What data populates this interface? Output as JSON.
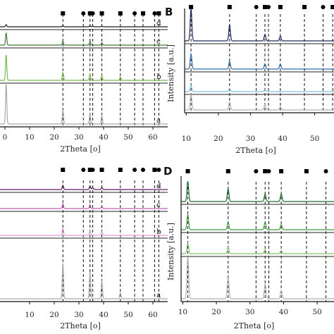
{
  "figure": {
    "colors": {
      "axis": "#111111",
      "separator": "#222222"
    }
  },
  "chart_data": [
    {
      "panel": "",
      "type": "line",
      "xlabel": "2Theta [o]",
      "ylabel": "",
      "xlim": [
        -2,
        66
      ],
      "xticks": [
        "0",
        "10",
        "20",
        "30",
        "40",
        "50",
        "60"
      ],
      "xtick_values": [
        0,
        10,
        20,
        30,
        40,
        50,
        60
      ],
      "marker_lines": [
        {
          "x": 23.5,
          "marker": "square"
        },
        {
          "x": 31.8,
          "marker": "circle"
        },
        {
          "x": 34.5,
          "marker": "square"
        },
        {
          "x": 35.6,
          "marker": "circle"
        },
        {
          "x": 39.3,
          "marker": "square"
        },
        {
          "x": 46.8,
          "marker": "square"
        },
        {
          "x": 52.6,
          "marker": "circle"
        },
        {
          "x": 56.0,
          "marker": "square"
        },
        {
          "x": 60.7,
          "marker": "circle"
        },
        {
          "x": 62.4,
          "marker": "square"
        }
      ],
      "series": [
        {
          "name": "d",
          "color": "#1c1c1c",
          "peaks": [
            [
              0.5,
              0.5
            ],
            [
              23.5,
              0.25
            ],
            [
              34.5,
              0.25
            ],
            [
              35.6,
              0.15
            ],
            [
              39.3,
              0.15
            ]
          ]
        },
        {
          "name": "c",
          "color": "#3d7a34",
          "peaks": [
            [
              0.5,
              0.8
            ],
            [
              23.5,
              0.25
            ],
            [
              34.5,
              0.25
            ],
            [
              39.3,
              0.15
            ]
          ]
        },
        {
          "name": "b",
          "color": "#78b950",
          "peaks": [
            [
              0.5,
              0.8
            ],
            [
              23.5,
              0.25
            ],
            [
              34.5,
              0.2
            ],
            [
              39.3,
              0.15
            ],
            [
              46.8,
              0.1
            ]
          ]
        },
        {
          "name": "a",
          "color": "#a9a9a9",
          "peaks": [
            [
              0.5,
              1.0
            ],
            [
              23.5,
              0.35
            ],
            [
              34.5,
              0.25
            ],
            [
              39.3,
              0.2
            ]
          ]
        }
      ]
    },
    {
      "panel": "B",
      "type": "line",
      "xlabel": "2Theta [o]",
      "ylabel": "Intensity [a.u.]",
      "xlim": [
        9.5,
        56
      ],
      "xticks": [
        "10",
        "20",
        "30",
        "40",
        "50"
      ],
      "xtick_values": [
        10,
        20,
        30,
        40,
        50
      ],
      "marker_lines": [
        {
          "x": 11.5,
          "marker": "square"
        },
        {
          "x": 23.5,
          "marker": "square"
        },
        {
          "x": 31.8,
          "marker": "circle"
        },
        {
          "x": 34.5,
          "marker": "square"
        },
        {
          "x": 35.6,
          "marker": "circle"
        },
        {
          "x": 39.3,
          "marker": "square"
        },
        {
          "x": 46.8,
          "marker": "square"
        },
        {
          "x": 52.6,
          "marker": "circle"
        },
        {
          "x": 55.6,
          "marker": "square"
        }
      ],
      "series": [
        {
          "name": "",
          "color": "#1f2a5c",
          "peaks": [
            [
              11.5,
              1.0
            ],
            [
              23.5,
              0.5
            ],
            [
              34.5,
              0.2
            ],
            [
              39.3,
              0.15
            ]
          ]
        },
        {
          "name": "",
          "color": "#2f6fae",
          "peaks": [
            [
              11.5,
              0.6
            ],
            [
              23.5,
              0.3
            ],
            [
              34.5,
              0.2
            ],
            [
              39.3,
              0.2
            ]
          ]
        },
        {
          "name": "",
          "color": "#7ec0e0",
          "peaks": [
            [
              11.5,
              0.3
            ],
            [
              23.5,
              0.15
            ],
            [
              34.5,
              0.1
            ]
          ]
        },
        {
          "name": "",
          "color": "#b0b0b0",
          "peaks": [
            [
              11.5,
              1.0
            ],
            [
              23.5,
              0.5
            ],
            [
              34.5,
              0.35
            ],
            [
              39.3,
              0.2
            ]
          ]
        }
      ]
    },
    {
      "panel": "",
      "type": "line",
      "xlabel": "2Theta [o]",
      "ylabel": "",
      "xlim": [
        -2,
        66
      ],
      "xticks": [
        "10",
        "20",
        "30",
        "40",
        "50",
        "60"
      ],
      "xtick_values": [
        10,
        20,
        30,
        40,
        50,
        60
      ],
      "marker_lines": [
        {
          "x": 23.5,
          "marker": "square"
        },
        {
          "x": 31.8,
          "marker": "circle"
        },
        {
          "x": 34.5,
          "marker": "square"
        },
        {
          "x": 35.6,
          "marker": "circle"
        },
        {
          "x": 39.3,
          "marker": "square"
        },
        {
          "x": 46.8,
          "marker": "square"
        },
        {
          "x": 52.6,
          "marker": "circle"
        },
        {
          "x": 56.0,
          "marker": "circle"
        },
        {
          "x": 60.7,
          "marker": "square"
        },
        {
          "x": 62.4,
          "marker": "circle"
        }
      ],
      "series": [
        {
          "name": "d",
          "color": "#5a1e5e",
          "peaks": [
            [
              23.5,
              0.3
            ],
            [
              34.5,
              0.25
            ],
            [
              35.6,
              0.15
            ],
            [
              39.3,
              0.15
            ]
          ]
        },
        {
          "name": "c",
          "color": "#c060b8",
          "peaks": [
            [
              23.5,
              0.3
            ],
            [
              34.5,
              0.25
            ],
            [
              39.3,
              0.15
            ]
          ]
        },
        {
          "name": "b",
          "color": "#e59ad8",
          "peaks": [
            [
              23.5,
              0.3
            ],
            [
              34.5,
              0.2
            ],
            [
              39.3,
              0.15
            ]
          ]
        },
        {
          "name": "a",
          "color": "#a9a9a9",
          "peaks": [
            [
              23.5,
              0.6
            ],
            [
              34.5,
              0.45
            ],
            [
              39.3,
              0.3
            ],
            [
              46.8,
              0.1
            ]
          ]
        }
      ]
    },
    {
      "panel": "D",
      "type": "line",
      "xlabel": "2Theta [o]",
      "ylabel": "Intensity [a.u.]",
      "xlim": [
        9.5,
        55
      ],
      "xticks": [
        "10",
        "20",
        "30",
        "40",
        "50"
      ],
      "xtick_values": [
        10,
        20,
        30,
        40,
        50
      ],
      "marker_lines": [
        {
          "x": 11.5,
          "marker": "square"
        },
        {
          "x": 23.5,
          "marker": "square"
        },
        {
          "x": 31.8,
          "marker": "circle"
        },
        {
          "x": 34.5,
          "marker": "square"
        },
        {
          "x": 35.6,
          "marker": "circle"
        },
        {
          "x": 39.3,
          "marker": "square"
        },
        {
          "x": 46.8,
          "marker": "square"
        },
        {
          "x": 52.6,
          "marker": "circle"
        }
      ],
      "series": [
        {
          "name": "",
          "color": "#1e6b2a",
          "peaks": [
            [
              11.5,
              0.8
            ],
            [
              23.5,
              0.5
            ],
            [
              34.5,
              0.3
            ],
            [
              39.3,
              0.3
            ]
          ]
        },
        {
          "name": "",
          "color": "#3f9a40",
          "peaks": [
            [
              11.5,
              0.6
            ],
            [
              23.5,
              0.3
            ],
            [
              34.5,
              0.3
            ],
            [
              39.3,
              0.2
            ]
          ]
        },
        {
          "name": "",
          "color": "#7fc46a",
          "peaks": [
            [
              11.5,
              0.5
            ],
            [
              23.5,
              0.3
            ],
            [
              34.5,
              0.2
            ],
            [
              39.3,
              0.15
            ]
          ]
        },
        {
          "name": "",
          "color": "#b0b0b0",
          "peaks": [
            [
              11.5,
              1.0
            ],
            [
              23.5,
              0.5
            ],
            [
              34.5,
              0.35
            ],
            [
              39.3,
              0.2
            ]
          ]
        }
      ]
    }
  ]
}
